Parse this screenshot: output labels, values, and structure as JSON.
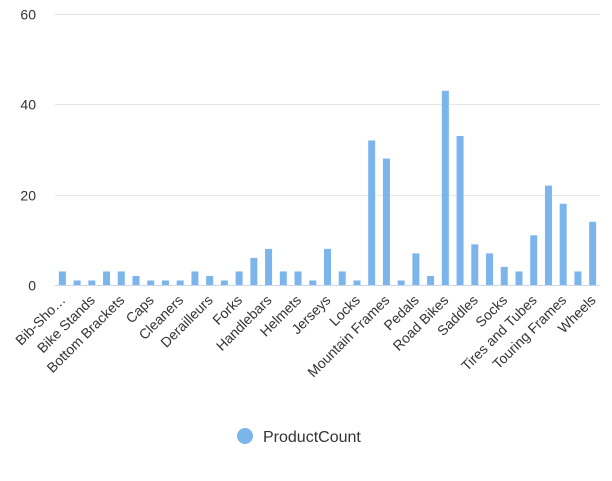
{
  "chart_data": {
    "type": "bar",
    "categories": [
      "Bib-Sho…",
      "",
      "Bike Stands",
      "",
      "Bottom Brackets",
      "",
      "Caps",
      "",
      "Cleaners",
      "",
      "Derailleurs",
      "",
      "Forks",
      "",
      "Handlebars",
      "",
      "Helmets",
      "",
      "Jerseys",
      "",
      "Locks",
      "",
      "Mountain Frames",
      "",
      "Pedals",
      "",
      "Road Bikes",
      "",
      "Saddles",
      "",
      "Socks",
      "",
      "Tires and Tubes",
      "",
      "Touring Frames",
      "",
      "Wheels"
    ],
    "series": [
      {
        "name": "ProductCount",
        "values": [
          3,
          1,
          1,
          3,
          3,
          2,
          1,
          1,
          1,
          3,
          2,
          1,
          3,
          6,
          8,
          3,
          3,
          1,
          8,
          3,
          1,
          32,
          28,
          1,
          7,
          2,
          43,
          33,
          9,
          7,
          4,
          3,
          11,
          22,
          18,
          3,
          14
        ]
      }
    ],
    "ylim": [
      0,
      60
    ],
    "yticks": [
      0,
      20,
      40,
      60
    ],
    "grid": true,
    "legend": "bottom",
    "colors": {
      "bar": "#7cb5ec",
      "grid": "#e6e6e6",
      "axis": "#ccd6eb"
    }
  }
}
